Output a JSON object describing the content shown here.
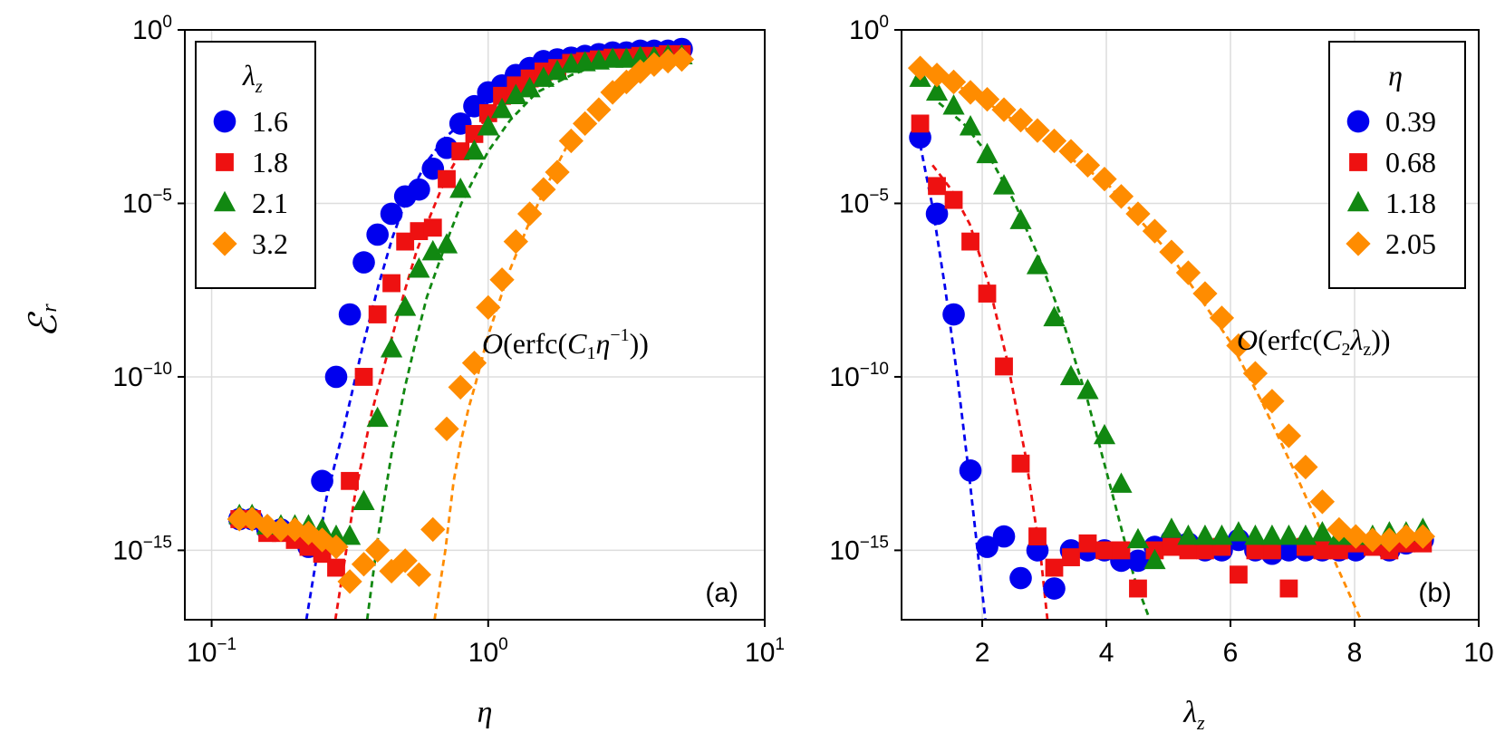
{
  "chart_data": [
    {
      "type": "scatter",
      "panel_label": "(a)",
      "xscale": "log",
      "yscale": "log",
      "xlabel": "η",
      "ylabel": "ℰ",
      "ylabel_sub": "r",
      "xlim": [
        0.08,
        10
      ],
      "ylim_exp": [
        -17,
        0
      ],
      "x_ticks": [
        {
          "base": "10",
          "exp": "−1",
          "v": -1
        },
        {
          "base": "10",
          "exp": "0",
          "v": 0
        },
        {
          "base": "10",
          "exp": "1",
          "v": 1
        }
      ],
      "y_ticks": [
        {
          "base": "10",
          "exp": "0",
          "v": 0
        },
        {
          "base": "10",
          "exp": "−5",
          "v": -5
        },
        {
          "base": "10",
          "exp": "−10",
          "v": -10
        },
        {
          "base": "10",
          "exp": "−15",
          "v": -15
        }
      ],
      "grid": true,
      "legend": {
        "title": "λ",
        "title_sub": "z",
        "position": "top-left"
      },
      "annotation": {
        "lead": "O",
        "open": "(erfc(",
        "c": "C",
        "c_sub": "1",
        "var": "η",
        "var_sup": "−1",
        "close": "))"
      },
      "series": [
        {
          "name": "1.6",
          "color": "#0000ee",
          "marker": "circle",
          "x": [
            0.126,
            0.14,
            0.159,
            0.178,
            0.2,
            0.224,
            0.251,
            0.282,
            0.316,
            0.355,
            0.398,
            0.447,
            0.501,
            0.562,
            0.631,
            0.708,
            0.794,
            0.891,
            1.0,
            1.122,
            1.259,
            1.413,
            1.585,
            1.778,
            1.995,
            2.239,
            2.512,
            2.818,
            3.162,
            3.548,
            3.981,
            4.467,
            5.012
          ],
          "y_exp": [
            -14.1,
            -14.1,
            -14.4,
            -14.4,
            -14.5,
            -14.9,
            -13.0,
            -10.0,
            -8.2,
            -6.7,
            -5.9,
            -5.3,
            -4.8,
            -4.6,
            -4.0,
            -3.4,
            -2.7,
            -2.2,
            -1.8,
            -1.6,
            -1.3,
            -1.1,
            -0.9,
            -0.85,
            -0.8,
            -0.75,
            -0.7,
            -0.65,
            -0.65,
            -0.6,
            -0.6,
            -0.6,
            -0.55
          ]
        },
        {
          "name": "1.8",
          "color": "#ee1111",
          "marker": "square",
          "x": [
            0.126,
            0.14,
            0.159,
            0.178,
            0.2,
            0.224,
            0.251,
            0.282,
            0.316,
            0.355,
            0.398,
            0.447,
            0.501,
            0.562,
            0.631,
            0.708,
            0.794,
            0.891,
            1.0,
            1.122,
            1.259,
            1.413,
            1.585,
            1.778,
            1.995,
            2.239,
            2.512,
            2.818,
            3.162,
            3.548,
            3.981,
            4.467,
            5.012
          ],
          "y_exp": [
            -14.1,
            -14.1,
            -14.5,
            -14.5,
            -14.7,
            -14.9,
            -15.1,
            -15.5,
            -13.0,
            -10.0,
            -8.2,
            -7.3,
            -6.1,
            -5.8,
            -5.7,
            -4.3,
            -3.5,
            -3.0,
            -2.4,
            -1.9,
            -1.6,
            -1.4,
            -1.2,
            -1.1,
            -0.95,
            -0.9,
            -0.85,
            -0.8,
            -0.8,
            -0.75,
            -0.75,
            -0.7,
            -0.7
          ]
        },
        {
          "name": "2.1",
          "color": "#118811",
          "marker": "triangle",
          "x": [
            0.126,
            0.14,
            0.159,
            0.178,
            0.2,
            0.224,
            0.251,
            0.282,
            0.316,
            0.355,
            0.398,
            0.447,
            0.501,
            0.562,
            0.631,
            0.708,
            0.794,
            0.891,
            1.0,
            1.122,
            1.259,
            1.413,
            1.585,
            1.778,
            1.995,
            2.239,
            2.512,
            2.818,
            3.162,
            3.548,
            3.981,
            4.467,
            5.012
          ],
          "y_exp": [
            -14.0,
            -14.0,
            -14.3,
            -14.3,
            -14.3,
            -14.3,
            -14.4,
            -14.6,
            -14.6,
            -13.6,
            -11.2,
            -9.2,
            -8.0,
            -6.9,
            -6.4,
            -6.2,
            -4.6,
            -3.5,
            -2.8,
            -2.3,
            -1.9,
            -1.7,
            -1.4,
            -1.2,
            -1.0,
            -0.95,
            -0.9,
            -0.85,
            -0.85,
            -0.8,
            -0.8,
            -0.75,
            -0.75
          ]
        },
        {
          "name": "3.2",
          "color": "#ff8c00",
          "marker": "diamond",
          "x": [
            0.126,
            0.14,
            0.159,
            0.178,
            0.2,
            0.224,
            0.251,
            0.282,
            0.316,
            0.355,
            0.398,
            0.447,
            0.501,
            0.562,
            0.631,
            0.708,
            0.794,
            0.891,
            1.0,
            1.122,
            1.259,
            1.413,
            1.585,
            1.778,
            1.995,
            2.239,
            2.512,
            2.818,
            3.162,
            3.548,
            3.981,
            4.467,
            5.012
          ],
          "y_exp": [
            -14.1,
            -14.1,
            -14.3,
            -14.4,
            -14.4,
            -14.5,
            -14.7,
            -14.9,
            -15.9,
            -15.4,
            -15.0,
            -15.6,
            -15.3,
            -15.7,
            -14.4,
            -11.5,
            -10.3,
            -9.6,
            -8.0,
            -7.2,
            -6.1,
            -5.3,
            -4.6,
            -4.1,
            -3.2,
            -2.7,
            -2.3,
            -1.8,
            -1.5,
            -1.2,
            -1.0,
            -0.9,
            -0.85
          ]
        }
      ],
      "fit_lines": [
        {
          "color": "#0000ee",
          "x": [
            0.22,
            0.26,
            0.3,
            0.35,
            0.4,
            0.45,
            0.5,
            0.6,
            0.7,
            0.85,
            1.0
          ],
          "y_exp": [
            -17,
            -13.5,
            -11.5,
            -9.2,
            -7.4,
            -6.0,
            -5.0,
            -3.8,
            -3.1,
            -2.5,
            -2.1
          ]
        },
        {
          "color": "#ee1111",
          "x": [
            0.28,
            0.33,
            0.38,
            0.43,
            0.5,
            0.55,
            0.6,
            0.7,
            0.8,
            0.9,
            1.0
          ],
          "y_exp": [
            -17,
            -13.4,
            -11.0,
            -9.4,
            -7.5,
            -6.4,
            -5.6,
            -4.3,
            -3.5,
            -2.9,
            -2.5
          ]
        },
        {
          "color": "#118811",
          "x": [
            0.365,
            0.4,
            0.45,
            0.5,
            0.55,
            0.6,
            0.7,
            0.8,
            0.9,
            1.0,
            1.2,
            1.5,
            2.0,
            2.5
          ],
          "y_exp": [
            -17,
            -14.6,
            -12.1,
            -10.3,
            -8.9,
            -7.7,
            -6.2,
            -5.0,
            -4.2,
            -3.5,
            -2.6,
            -1.8,
            -1.3,
            -1.0
          ]
        },
        {
          "color": "#ff8c00",
          "x": [
            0.64,
            0.7,
            0.75,
            0.8,
            0.85,
            0.9,
            1.0,
            1.1,
            1.2,
            1.4,
            1.6,
            1.8,
            2.0
          ],
          "y_exp": [
            -17,
            -15.0,
            -13.0,
            -11.8,
            -10.9,
            -10.2,
            -8.8,
            -7.8,
            -6.9,
            -5.6,
            -4.6,
            -3.8,
            -3.1
          ]
        }
      ]
    },
    {
      "type": "scatter",
      "panel_label": "(b)",
      "xscale": "linear",
      "yscale": "log",
      "xlabel": "λ",
      "xlabel_sub": "z",
      "xlim": [
        0.7,
        10
      ],
      "ylim_exp": [
        -17,
        0
      ],
      "x_ticks": [
        {
          "label": "2",
          "v": 2
        },
        {
          "label": "4",
          "v": 4
        },
        {
          "label": "6",
          "v": 6
        },
        {
          "label": "8",
          "v": 8
        },
        {
          "label": "10",
          "v": 10
        }
      ],
      "y_ticks": [
        {
          "base": "10",
          "exp": "0",
          "v": 0
        },
        {
          "base": "10",
          "exp": "−5",
          "v": -5
        },
        {
          "base": "10",
          "exp": "−10",
          "v": -10
        },
        {
          "base": "10",
          "exp": "−15",
          "v": -15
        }
      ],
      "grid": true,
      "legend": {
        "title": "η",
        "position": "top-right"
      },
      "annotation": {
        "lead": "O",
        "open": "(erfc(",
        "c": "C",
        "c_sub": "2",
        "var": "λ",
        "var_sub": "z",
        "close": "))"
      },
      "series": [
        {
          "name": "0.39",
          "color": "#0000ee",
          "marker": "circle",
          "x": [
            1.0,
            1.27,
            1.54,
            1.81,
            2.08,
            2.35,
            2.62,
            2.89,
            3.16,
            3.43,
            3.7,
            3.97,
            4.24,
            4.51,
            4.78,
            5.05,
            5.32,
            5.59,
            5.86,
            6.13,
            6.4,
            6.67,
            6.94,
            7.21,
            7.48,
            7.75,
            8.02,
            8.29,
            8.56,
            8.83,
            9.1
          ],
          "y_exp": [
            -3.1,
            -5.3,
            -8.2,
            -12.7,
            -14.9,
            -14.6,
            -15.8,
            -15.0,
            -16.1,
            -15.0,
            -15.0,
            -15.0,
            -15.3,
            -15.3,
            -14.9,
            -14.7,
            -14.8,
            -15.0,
            -15.0,
            -14.7,
            -15.0,
            -15.1,
            -15.0,
            -15.0,
            -15.0,
            -15.0,
            -15.0,
            -14.8,
            -15.0,
            -14.8,
            -14.7
          ]
        },
        {
          "name": "0.68",
          "color": "#ee1111",
          "marker": "square",
          "x": [
            1.0,
            1.27,
            1.54,
            1.81,
            2.08,
            2.35,
            2.62,
            2.89,
            3.16,
            3.43,
            3.7,
            3.97,
            4.24,
            4.51,
            4.78,
            5.05,
            5.32,
            5.59,
            5.86,
            6.13,
            6.4,
            6.67,
            6.94,
            7.21,
            7.48,
            7.75,
            8.02,
            8.29,
            8.56,
            8.83,
            9.1
          ],
          "y_exp": [
            -2.7,
            -4.5,
            -4.9,
            -6.1,
            -7.6,
            -9.7,
            -12.5,
            -14.6,
            -15.5,
            -15.2,
            -14.8,
            -15.0,
            -15.0,
            -16.1,
            -15.0,
            -14.9,
            -15.0,
            -15.0,
            -14.9,
            -15.7,
            -15.0,
            -15.0,
            -16.1,
            -14.9,
            -15.0,
            -15.0,
            -14.8,
            -14.9,
            -15.0,
            -14.8,
            -14.8
          ]
        },
        {
          "name": "1.18",
          "color": "#118811",
          "marker": "triangle",
          "x": [
            1.0,
            1.27,
            1.54,
            1.81,
            2.08,
            2.35,
            2.62,
            2.89,
            3.16,
            3.43,
            3.7,
            3.97,
            4.24,
            4.51,
            4.78,
            5.05,
            5.32,
            5.59,
            5.86,
            6.13,
            6.4,
            6.67,
            6.94,
            7.21,
            7.48,
            7.75,
            8.02,
            8.29,
            8.56,
            8.83,
            9.1
          ],
          "y_exp": [
            -1.4,
            -1.8,
            -2.2,
            -2.8,
            -3.6,
            -4.5,
            -5.5,
            -6.8,
            -8.3,
            -10.0,
            -10.4,
            -11.7,
            -13.1,
            -14.7,
            -15.3,
            -14.4,
            -14.6,
            -14.6,
            -14.6,
            -14.5,
            -14.6,
            -14.6,
            -14.6,
            -14.6,
            -14.5,
            -14.6,
            -14.6,
            -14.6,
            -14.5,
            -14.5,
            -14.4
          ]
        },
        {
          "name": "2.05",
          "color": "#ff8c00",
          "marker": "diamond",
          "x": [
            1.0,
            1.27,
            1.54,
            1.81,
            2.08,
            2.35,
            2.62,
            2.89,
            3.16,
            3.43,
            3.7,
            3.97,
            4.24,
            4.51,
            4.78,
            5.05,
            5.32,
            5.59,
            5.86,
            6.13,
            6.4,
            6.67,
            6.94,
            7.21,
            7.48,
            7.75,
            8.02,
            8.29,
            8.56,
            8.83,
            9.1
          ],
          "y_exp": [
            -1.1,
            -1.3,
            -1.5,
            -1.8,
            -2.0,
            -2.3,
            -2.6,
            -2.9,
            -3.2,
            -3.5,
            -3.9,
            -4.3,
            -4.8,
            -5.3,
            -5.8,
            -6.4,
            -7.0,
            -7.6,
            -8.3,
            -9.1,
            -9.9,
            -10.7,
            -11.7,
            -12.6,
            -13.6,
            -14.4,
            -14.6,
            -14.7,
            -14.7,
            -14.6,
            -14.6
          ]
        }
      ],
      "fit_lines": [
        {
          "color": "#0000ee",
          "x": [
            1.0,
            1.2,
            1.4,
            1.6,
            1.8,
            2.0,
            2.05
          ],
          "y_exp": [
            -3.3,
            -5.1,
            -7.4,
            -10.0,
            -13.0,
            -16.2,
            -17
          ]
        },
        {
          "color": "#ee1111",
          "x": [
            1.2,
            1.5,
            1.8,
            2.1,
            2.4,
            2.7,
            2.95,
            3.05
          ],
          "y_exp": [
            -3.9,
            -4.6,
            -5.6,
            -7.3,
            -9.5,
            -12.3,
            -15.3,
            -17
          ]
        },
        {
          "color": "#118811",
          "x": [
            1.3,
            1.7,
            2.1,
            2.5,
            2.9,
            3.3,
            3.7,
            4.1,
            4.45,
            4.7
          ],
          "y_exp": [
            -2.1,
            -2.7,
            -3.6,
            -4.9,
            -6.5,
            -8.4,
            -10.7,
            -13.4,
            -15.8,
            -17
          ]
        },
        {
          "color": "#ff8c00",
          "x": [
            1.2,
            2.0,
            3.0,
            4.0,
            5.0,
            6.0,
            6.5,
            7.0,
            7.5,
            7.9,
            8.1
          ],
          "y_exp": [
            -1.2,
            -2.0,
            -3.2,
            -4.4,
            -6.4,
            -9.0,
            -10.7,
            -12.6,
            -14.6,
            -16.2,
            -17
          ]
        }
      ]
    }
  ]
}
